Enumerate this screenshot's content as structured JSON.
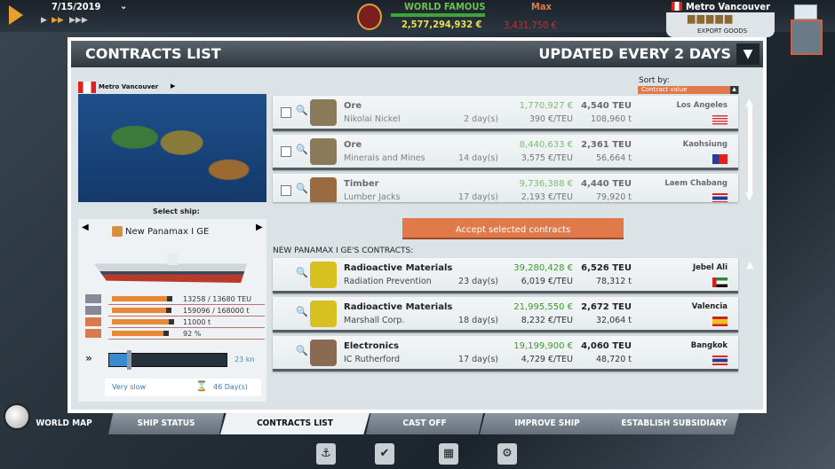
{
  "topbar": {
    "date": "7/15/2019",
    "reputation": "WORLD FAMOUS",
    "money": "2,577,294,932 €",
    "player": "Max",
    "player_balance": "3,431,750 €",
    "location": "Metro Vancouver",
    "export_goods": "EXPORT GOODS",
    "icons": [
      "play-icon",
      "speed-normal-icon",
      "speed-fast-icon",
      "speed-fastest-icon",
      "rank-badge-icon",
      "mail-icon"
    ]
  },
  "panel": {
    "title": "CONTRACTS LIST",
    "updated": "UPDATED EVERY 2 DAYS",
    "region": "Metro Vancouver",
    "sort_label": "Sort by:",
    "sort_value": "Contract value",
    "select_ship_label": "Select ship:",
    "accept_button": "Accept selected contracts",
    "ship_contracts_heading": "NEW PANAMAX I GE'S CONTRACTS:"
  },
  "ship": {
    "name": "New Panamax I GE",
    "stats": [
      {
        "text": "13258 / 13680 TEU",
        "fill": 0.97
      },
      {
        "text": "159096 / 168000 t",
        "fill": 0.95
      },
      {
        "text": "11000 t",
        "fill": 1.0
      },
      {
        "text": "92 %",
        "fill": 0.92
      }
    ],
    "speed": "23 kn",
    "speed_level": 0.17,
    "speed_label": "Very slow",
    "duration": "46 Day(s)"
  },
  "available_contracts": [
    {
      "cargo": "Ore",
      "company": "Nikolai Nickel",
      "days": "2 day(s)",
      "value": "1,770,927 €",
      "per_teu": "390 €/TEU",
      "teu": "4,540 TEU",
      "tons": "108,960 t",
      "destination": "Los Angeles",
      "flag": "us"
    },
    {
      "cargo": "Ore",
      "company": "Minerals and Mines",
      "days": "14 day(s)",
      "value": "8,440,633 €",
      "per_teu": "3,575 €/TEU",
      "teu": "2,361 TEU",
      "tons": "56,664 t",
      "destination": "Kaohsiung",
      "flag": "tw"
    },
    {
      "cargo": "Timber",
      "company": "Lumber Jacks",
      "days": "17 day(s)",
      "value": "9,736,388 €",
      "per_teu": "2,193 €/TEU",
      "teu": "4,440 TEU",
      "tons": "79,920 t",
      "destination": "Laem Chabang",
      "flag": "th"
    }
  ],
  "ship_contracts": [
    {
      "cargo": "Radioactive Materials",
      "company": "Radiation Prevention",
      "days": "23 day(s)",
      "value": "39,280,428 €",
      "per_teu": "6,019 €/TEU",
      "teu": "6,526 TEU",
      "tons": "78,312 t",
      "destination": "Jebel Ali",
      "flag": "ae"
    },
    {
      "cargo": "Radioactive Materials",
      "company": "Marshall Corp.",
      "days": "18 day(s)",
      "value": "21,995,550 €",
      "per_teu": "8,232 €/TEU",
      "teu": "2,672 TEU",
      "tons": "32,064 t",
      "destination": "Valencia",
      "flag": "es"
    },
    {
      "cargo": "Electronics",
      "company": "IC Rutherford",
      "days": "17 day(s)",
      "value": "19,199,900 €",
      "per_teu": "4,729 €/TEU",
      "teu": "4,060 TEU",
      "tons": "48,720 t",
      "destination": "Bangkok",
      "flag": "th"
    }
  ],
  "tabs": [
    {
      "label": "WORLD MAP"
    },
    {
      "label": "SHIP STATUS"
    },
    {
      "label": "CONTRACTS LIST",
      "active": true
    },
    {
      "label": "CAST OFF"
    },
    {
      "label": "IMPROVE SHIP"
    },
    {
      "label": "ESTABLISH SUBSIDIARY"
    }
  ],
  "colors": {
    "accent_orange": "#e07a4a",
    "money_green": "#3a9a2a",
    "header_dark": "#2f383f"
  }
}
